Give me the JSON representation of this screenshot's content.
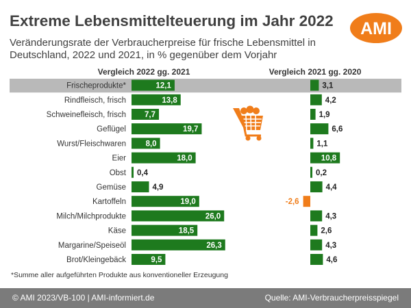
{
  "header": {
    "title": "Extreme Lebensmittelteuerung im Jahr 2022",
    "subtitle": "Veränderungsrate der Verbraucherpreise für frische Lebensmittel in Deutschland, 2022 und 2021, in % gegenüber dem Vorjahr",
    "logo_text": "AMI"
  },
  "colors": {
    "bar_positive": "#1e7a1e",
    "bar_negative": "#f07d1a",
    "highlight_row": "#b9b9b9",
    "logo": "#f07d1a",
    "footer": "#7b7b7b"
  },
  "icons": [
    "shopping-cart-icon"
  ],
  "chart_data": [
    {
      "type": "bar",
      "orientation": "horizontal",
      "title": "Vergleich 2022 gg. 2021",
      "categories": [
        "Frischeprodukte*",
        "Rindfleisch, frisch",
        "Schweinefleisch, frisch",
        "Geflügel",
        "Wurst/Fleischwaren",
        "Eier",
        "Obst",
        "Gemüse",
        "Kartoffeln",
        "Milch/Milchprodukte",
        "Käse",
        "Margarine/Speiseöl",
        "Brot/Kleingebäck"
      ],
      "values": [
        12.1,
        13.8,
        7.7,
        19.7,
        8.0,
        18.0,
        0.4,
        4.9,
        19.0,
        26.0,
        18.5,
        26.3,
        9.5
      ],
      "value_labels": [
        "12,1",
        "13,8",
        "7,7",
        "19,7",
        "8,0",
        "18,0",
        "0,4",
        "4,9",
        "19,0",
        "26,0",
        "18,5",
        "26,3",
        "9,5"
      ],
      "highlight_category": "Frischeprodukte*",
      "grid": false
    },
    {
      "type": "bar",
      "orientation": "horizontal",
      "title": "Vergleich 2021 gg. 2020",
      "categories": [
        "Frischeprodukte*",
        "Rindfleisch, frisch",
        "Schweinefleisch, frisch",
        "Geflügel",
        "Wurst/Fleischwaren",
        "Eier",
        "Obst",
        "Gemüse",
        "Kartoffeln",
        "Milch/Milchprodukte",
        "Käse",
        "Margarine/Speiseöl",
        "Brot/Kleingebäck"
      ],
      "values": [
        3.1,
        4.2,
        1.9,
        6.6,
        1.1,
        10.8,
        0.2,
        4.4,
        -2.6,
        4.3,
        2.6,
        4.3,
        4.6
      ],
      "value_labels": [
        "3,1",
        "4,2",
        "1,9",
        "6,6",
        "1,1",
        "10,8",
        "0,2",
        "4,4",
        "-2,6",
        "4,3",
        "2,6",
        "4,3",
        "4,6"
      ],
      "highlight_category": "Frischeprodukte*",
      "grid": false
    }
  ],
  "footnote": "*Summe aller aufgeführten Produkte aus konventioneller Erzeugung",
  "footer": {
    "left": "© AMI 2023/VB-100 | AMI-informiert.de",
    "right": "Quelle: AMI-Verbraucherpreisspiegel"
  }
}
